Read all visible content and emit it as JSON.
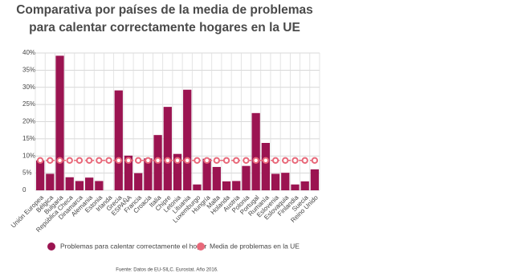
{
  "chart_data": {
    "type": "bar-line",
    "title": "Comparativa por países de la media de problemas para calentar correctamente hogares en la UE",
    "categories": [
      "Unión Europea",
      "Bélgica",
      "Bulgaria",
      "República Checa",
      "Dinamarca",
      "Alemania",
      "Estonia",
      "Irlanda",
      "Grecia",
      "ESPAÑA",
      "Francia",
      "Croacia",
      "Italia",
      "Chipre",
      "Letonia",
      "Lituania",
      "Luxemburgo",
      "Hungría",
      "Malta",
      "Holanda",
      "Austria",
      "Polonia",
      "Portugal",
      "Rumanía",
      "Eslovenia",
      "Eslovaquia",
      "Finlandia",
      "Suecia",
      "Reino Unido"
    ],
    "series": [
      {
        "name": "Problemas para calentar correctamente el hogar",
        "type": "bar",
        "color": "#9b1451",
        "values": [
          8.7,
          4.8,
          39.2,
          3.8,
          2.7,
          3.7,
          2.7,
          null,
          29.1,
          10.1,
          5.0,
          9.3,
          16.1,
          24.3,
          10.6,
          29.3,
          1.7,
          9.2,
          6.8,
          2.6,
          2.7,
          7.1,
          22.5,
          13.8,
          4.8,
          5.1,
          1.7,
          2.6,
          6.1
        ]
      },
      {
        "name": "Media de problemas en la UE",
        "type": "line",
        "color": "#e8697a",
        "values": [
          8.7,
          8.7,
          8.7,
          8.7,
          8.7,
          8.7,
          8.7,
          8.7,
          8.7,
          8.7,
          8.7,
          8.7,
          8.7,
          8.7,
          8.7,
          8.7,
          8.7,
          8.7,
          8.7,
          8.7,
          8.7,
          8.7,
          8.7,
          8.7,
          8.7,
          8.7,
          8.7,
          8.7,
          8.7
        ]
      }
    ],
    "ylim": [
      0,
      40
    ],
    "yticks": [
      {
        "value": 0,
        "label": "0"
      },
      {
        "value": 5,
        "label": "5%"
      },
      {
        "value": 10,
        "label": "10%"
      },
      {
        "value": 15,
        "label": "15%"
      },
      {
        "value": 20,
        "label": "20%"
      },
      {
        "value": 25,
        "label": "25%"
      },
      {
        "value": 30,
        "label": "30%"
      },
      {
        "value": 35,
        "label": "35%"
      },
      {
        "value": 40,
        "label": "40%"
      }
    ],
    "grid": true,
    "source": "Fuente: Datos de EU-SILC. Eurostat. Año 2016."
  }
}
